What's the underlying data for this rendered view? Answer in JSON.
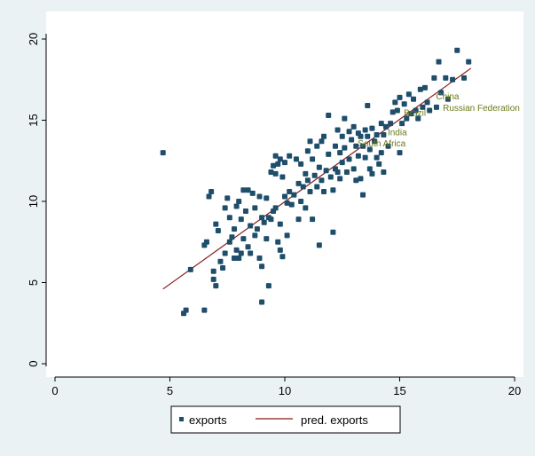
{
  "chart_data": {
    "type": "scatter",
    "title": "",
    "xlabel": "",
    "ylabel": "",
    "xlim": [
      0,
      20
    ],
    "ylim": [
      0,
      20
    ],
    "x_ticks": [
      "0",
      "5",
      "10",
      "15",
      "20"
    ],
    "y_ticks": [
      "0",
      "5",
      "10",
      "15",
      "20"
    ],
    "grid": false,
    "legend_position": "bottom",
    "colors": {
      "background": "#eaf2f3",
      "plot_background": "#ffffff",
      "points": "#1f4e6b",
      "fit_line": "#8b1a1a",
      "annotation_text": "#6b7a1a"
    },
    "series": [
      {
        "name": "exports",
        "kind": "scatter",
        "points": [
          [
            4.7,
            13.0
          ],
          [
            5.6,
            3.1
          ],
          [
            5.7,
            3.3
          ],
          [
            5.9,
            5.8
          ],
          [
            6.5,
            3.3
          ],
          [
            6.5,
            7.3
          ],
          [
            6.6,
            7.5
          ],
          [
            6.7,
            10.3
          ],
          [
            6.8,
            10.6
          ],
          [
            6.9,
            5.7
          ],
          [
            6.9,
            5.2
          ],
          [
            7.0,
            4.8
          ],
          [
            7.0,
            8.6
          ],
          [
            7.1,
            8.2
          ],
          [
            7.2,
            6.3
          ],
          [
            7.3,
            5.9
          ],
          [
            7.4,
            9.6
          ],
          [
            7.4,
            6.8
          ],
          [
            7.5,
            10.2
          ],
          [
            7.6,
            9.0
          ],
          [
            7.6,
            7.5
          ],
          [
            7.7,
            7.8
          ],
          [
            7.8,
            8.3
          ],
          [
            7.8,
            6.5
          ],
          [
            7.9,
            9.7
          ],
          [
            7.9,
            7.0
          ],
          [
            8.0,
            10.0
          ],
          [
            8.0,
            6.5
          ],
          [
            8.1,
            8.9
          ],
          [
            8.1,
            6.8
          ],
          [
            8.2,
            10.7
          ],
          [
            8.2,
            7.7
          ],
          [
            8.3,
            9.4
          ],
          [
            8.4,
            10.7
          ],
          [
            8.4,
            7.2
          ],
          [
            8.5,
            8.5
          ],
          [
            8.5,
            6.8
          ],
          [
            8.6,
            10.5
          ],
          [
            8.7,
            9.6
          ],
          [
            8.7,
            7.9
          ],
          [
            8.8,
            8.3
          ],
          [
            8.9,
            10.3
          ],
          [
            8.9,
            6.5
          ],
          [
            9.0,
            9.0
          ],
          [
            9.0,
            6.0
          ],
          [
            9.0,
            3.8
          ],
          [
            9.1,
            8.7
          ],
          [
            9.2,
            10.2
          ],
          [
            9.2,
            7.7
          ],
          [
            9.3,
            4.8
          ],
          [
            9.3,
            9.0
          ],
          [
            9.4,
            11.8
          ],
          [
            9.4,
            8.9
          ],
          [
            9.5,
            12.2
          ],
          [
            9.5,
            9.4
          ],
          [
            9.6,
            12.8
          ],
          [
            9.6,
            11.7
          ],
          [
            9.6,
            9.6
          ],
          [
            9.7,
            12.3
          ],
          [
            9.7,
            7.5
          ],
          [
            9.8,
            12.6
          ],
          [
            9.8,
            8.6
          ],
          [
            9.8,
            7.0
          ],
          [
            9.9,
            11.5
          ],
          [
            9.9,
            6.6
          ],
          [
            10.0,
            12.4
          ],
          [
            10.0,
            10.3
          ],
          [
            10.1,
            9.9
          ],
          [
            10.1,
            7.9
          ],
          [
            10.2,
            12.8
          ],
          [
            10.2,
            10.6
          ],
          [
            10.3,
            9.8
          ],
          [
            10.4,
            10.4
          ],
          [
            10.5,
            12.6
          ],
          [
            10.6,
            11.1
          ],
          [
            10.6,
            8.9
          ],
          [
            10.7,
            12.3
          ],
          [
            10.7,
            10.0
          ],
          [
            10.8,
            10.9
          ],
          [
            10.9,
            11.7
          ],
          [
            10.9,
            9.6
          ],
          [
            11.0,
            13.1
          ],
          [
            11.0,
            11.3
          ],
          [
            11.1,
            13.7
          ],
          [
            11.1,
            10.6
          ],
          [
            11.2,
            12.6
          ],
          [
            11.2,
            8.9
          ],
          [
            11.3,
            11.6
          ],
          [
            11.4,
            13.4
          ],
          [
            11.4,
            10.9
          ],
          [
            11.5,
            12.1
          ],
          [
            11.5,
            7.3
          ],
          [
            11.6,
            13.7
          ],
          [
            11.6,
            11.3
          ],
          [
            11.7,
            14.0
          ],
          [
            11.7,
            10.6
          ],
          [
            11.8,
            11.9
          ],
          [
            11.9,
            15.3
          ],
          [
            11.9,
            12.9
          ],
          [
            12.0,
            11.5
          ],
          [
            12.1,
            10.7
          ],
          [
            12.1,
            8.1
          ],
          [
            12.2,
            13.4
          ],
          [
            12.2,
            12.0
          ],
          [
            12.3,
            14.4
          ],
          [
            12.3,
            11.8
          ],
          [
            12.4,
            13.0
          ],
          [
            12.4,
            11.4
          ],
          [
            12.5,
            14.0
          ],
          [
            12.5,
            12.4
          ],
          [
            12.6,
            15.1
          ],
          [
            12.6,
            13.3
          ],
          [
            12.7,
            11.8
          ],
          [
            12.8,
            14.3
          ],
          [
            12.8,
            12.6
          ],
          [
            12.9,
            13.8
          ],
          [
            13.0,
            14.6
          ],
          [
            13.0,
            12.0
          ],
          [
            13.1,
            13.4
          ],
          [
            13.1,
            11.3
          ],
          [
            13.2,
            14.2
          ],
          [
            13.2,
            12.8
          ],
          [
            13.3,
            14.0
          ],
          [
            13.3,
            11.4
          ],
          [
            13.4,
            13.4
          ],
          [
            13.4,
            10.4
          ],
          [
            13.5,
            14.4
          ],
          [
            13.5,
            12.7
          ],
          [
            13.6,
            14.0
          ],
          [
            13.6,
            15.9
          ],
          [
            13.7,
            13.2
          ],
          [
            13.7,
            12.0
          ],
          [
            13.8,
            14.5
          ],
          [
            13.8,
            11.7
          ],
          [
            13.9,
            13.7
          ],
          [
            14.0,
            14.1
          ],
          [
            14.0,
            12.7
          ],
          [
            14.1,
            12.3
          ],
          [
            14.2,
            14.8
          ],
          [
            14.2,
            13.0
          ],
          [
            14.3,
            14.1
          ],
          [
            14.3,
            11.8
          ],
          [
            14.4,
            14.6
          ],
          [
            14.5,
            13.4
          ],
          [
            14.6,
            14.8
          ],
          [
            14.7,
            15.5
          ],
          [
            14.8,
            16.1
          ],
          [
            14.9,
            15.6
          ],
          [
            15.0,
            16.4
          ],
          [
            15.0,
            13.0
          ],
          [
            15.1,
            14.8
          ],
          [
            15.2,
            16.0
          ],
          [
            15.3,
            15.1
          ],
          [
            15.4,
            16.6
          ],
          [
            15.5,
            15.4
          ],
          [
            15.6,
            16.3
          ],
          [
            15.7,
            15.6
          ],
          [
            15.8,
            15.1
          ],
          [
            15.9,
            16.9
          ],
          [
            16.0,
            15.8
          ],
          [
            16.1,
            17.0
          ],
          [
            16.2,
            16.1
          ],
          [
            16.3,
            15.6
          ],
          [
            16.5,
            17.6
          ],
          [
            16.6,
            15.8
          ],
          [
            16.7,
            18.6
          ],
          [
            16.8,
            16.7
          ],
          [
            17.0,
            17.6
          ],
          [
            17.1,
            16.3
          ],
          [
            17.3,
            17.5
          ],
          [
            17.5,
            19.3
          ],
          [
            17.8,
            17.6
          ],
          [
            18.0,
            18.6
          ]
        ]
      },
      {
        "name": "pred. exports",
        "kind": "line",
        "x": [
          4.7,
          18.1
        ],
        "y": [
          4.6,
          18.2
        ]
      }
    ],
    "annotations": [
      {
        "text": "China",
        "x": 16.5,
        "y": 16.5
      },
      {
        "text": "Russian Federation",
        "x": 16.8,
        "y": 15.8
      },
      {
        "text": "Brazil",
        "x": 15.1,
        "y": 15.5
      },
      {
        "text": "India",
        "x": 14.4,
        "y": 14.3
      },
      {
        "text": "South Africa",
        "x": 13.1,
        "y": 13.6
      }
    ],
    "legend": [
      {
        "label": "exports",
        "marker": "square"
      },
      {
        "label": "pred. exports",
        "marker": "line"
      }
    ]
  }
}
